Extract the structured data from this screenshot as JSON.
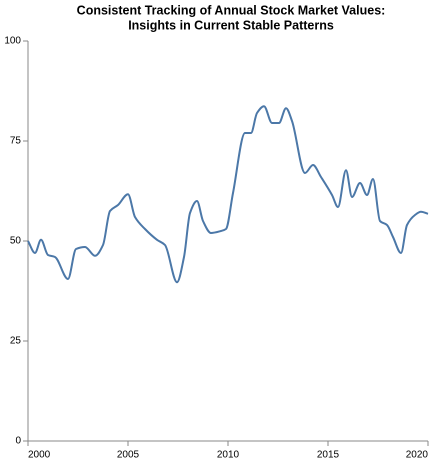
{
  "chart_data": {
    "type": "line",
    "title": [
      "Consistent Tracking of Annual Stock Market Values:",
      "Insights in Current Stable Patterns"
    ],
    "x": [
      2000.0,
      2000.35,
      2000.65,
      2001.0,
      2001.35,
      2002.0,
      2002.4,
      2002.85,
      2003.35,
      2003.75,
      2004.1,
      2004.5,
      2005.0,
      2005.35,
      2005.85,
      2006.45,
      2006.85,
      2007.45,
      2007.8,
      2008.1,
      2008.45,
      2008.75,
      2009.15,
      2009.65,
      2009.9,
      2010.25,
      2010.85,
      2011.15,
      2011.45,
      2011.8,
      2012.2,
      2012.55,
      2012.9,
      2013.2,
      2013.85,
      2014.25,
      2014.65,
      2015.2,
      2015.5,
      2015.9,
      2016.2,
      2016.6,
      2016.95,
      2017.25,
      2017.6,
      2017.95,
      2018.25,
      2018.65,
      2018.95,
      2019.35,
      2019.65,
      2020.0
    ],
    "series": [
      {
        "color": "#4c78a8",
        "values": [
          50,
          47,
          50.3,
          46.5,
          46,
          40.5,
          48,
          48.5,
          46.3,
          49,
          57.5,
          59,
          61.7,
          56,
          53,
          50.3,
          49,
          39.7,
          46,
          57,
          60,
          55,
          52,
          52.5,
          53,
          62,
          77,
          77,
          82,
          83.7,
          79.5,
          79.5,
          83.2,
          80,
          67,
          69,
          66,
          61.5,
          58.5,
          67.7,
          61,
          64.5,
          61.5,
          65.5,
          55,
          54,
          51,
          47,
          54,
          56.5,
          57.3,
          56.8
        ]
      }
    ],
    "xlim": [
      2000,
      2020
    ],
    "xticks": [
      2000,
      2005,
      2010,
      2015,
      2020
    ],
    "ylim": [
      0,
      100
    ],
    "yticks": [
      0,
      25,
      50,
      75,
      100
    ],
    "grid": false
  }
}
